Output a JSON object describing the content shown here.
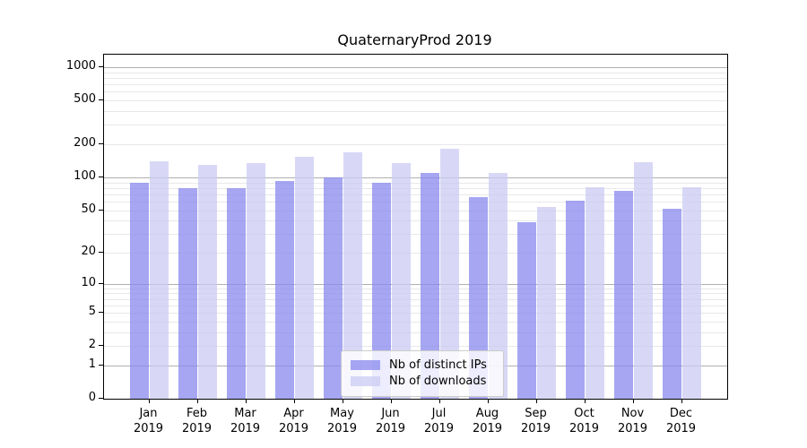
{
  "chart_data": {
    "type": "bar",
    "title": "QuaternaryProd 2019",
    "x": {
      "categories": [
        "Jan",
        "Feb",
        "Mar",
        "Apr",
        "May",
        "Jun",
        "Jul",
        "Aug",
        "Sep",
        "Oct",
        "Nov",
        "Dec"
      ],
      "year_label": "2019"
    },
    "y": {
      "scale": "log10(1+x)",
      "ticks": [
        0,
        1,
        2,
        5,
        10,
        20,
        50,
        100,
        200,
        500,
        1000
      ],
      "major_gridlines": [
        1,
        10,
        100,
        1000
      ],
      "axis_top_value": 1290
    },
    "series": [
      {
        "name": "Nb of distinct IPs",
        "color": "#8888ee",
        "opacity": 0.75,
        "values": [
          90,
          79,
          80,
          92,
          100,
          90,
          110,
          66,
          39,
          61,
          75,
          51
        ]
      },
      {
        "name": "Nb of downloads",
        "color": "#cbcbf3",
        "opacity": 0.75,
        "values": [
          141,
          129,
          134,
          153,
          168,
          135,
          182,
          110,
          53,
          81,
          138,
          81
        ]
      }
    ],
    "legend": {
      "position": "inside-bottom-center",
      "labels": [
        "Nb of distinct IPs",
        "Nb of downloads"
      ]
    },
    "grid": {
      "major_color": "#b0b0b0",
      "minor_color": "#e8e8e8"
    }
  }
}
